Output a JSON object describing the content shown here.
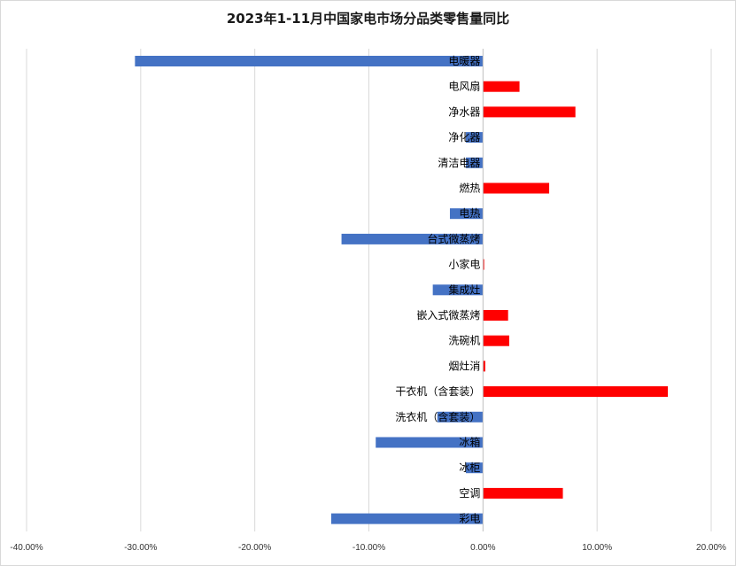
{
  "chart_data": {
    "type": "bar",
    "orientation": "horizontal",
    "title": "2023年1-11月中国家电市场分品类零售量同比",
    "categories": [
      "电暖器",
      "电风扇",
      "净水器",
      "净化器",
      "清洁电器",
      "燃热",
      "电热",
      "台式微蒸烤",
      "小家电",
      "集成灶",
      "嵌入式微蒸烤",
      "洗碗机",
      "烟灶消",
      "干衣机（含套装）",
      "洗衣机（含套装）",
      "冰箱",
      "冰柜",
      "空调",
      "彩电"
    ],
    "values": [
      -30.5,
      3.2,
      8.1,
      -1.5,
      -1.5,
      5.8,
      -2.9,
      -12.4,
      0.1,
      -4.4,
      2.2,
      2.3,
      0.2,
      16.2,
      -4.0,
      -9.4,
      -1.5,
      7.0,
      -13.3
    ],
    "xlim": [
      -40,
      20
    ],
    "xticks": [
      -40,
      -30,
      -20,
      -10,
      0,
      10,
      20
    ],
    "xtick_labels": [
      "-40.00%",
      "-30.00%",
      "-20.00%",
      "-10.00%",
      "0.00%",
      "10.00%",
      "20.00%"
    ],
    "grid": true,
    "colors": {
      "positive": "#ff0000",
      "negative": "#4472c4",
      "grid": "#d9d9d9",
      "axis": "#bfbfbf"
    }
  }
}
